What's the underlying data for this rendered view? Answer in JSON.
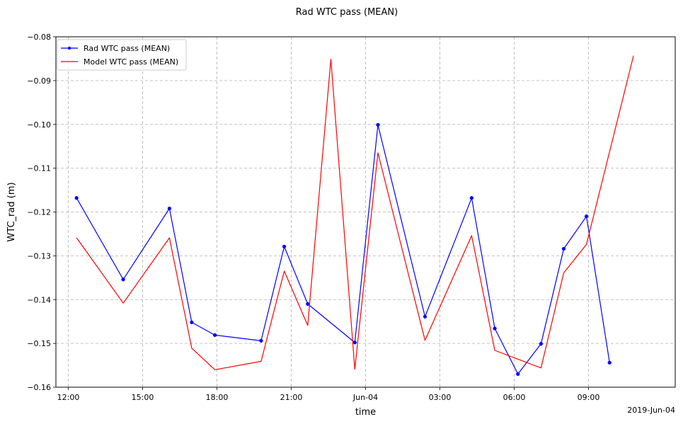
{
  "chart_data": {
    "type": "line",
    "title": "Rad WTC pass (MEAN)",
    "xlabel": "time",
    "ylabel": "WTC_rad (m)",
    "x_offset_label": "2019-Jun-04",
    "xlim": [
      "2019-06-03T11:30",
      "2019-06-04T12:30"
    ],
    "ylim": [
      -0.16,
      -0.08
    ],
    "grid": true,
    "legend_position": "top-left",
    "x_ticks": [
      {
        "t": "2019-06-03T12:00",
        "label": "12:00"
      },
      {
        "t": "2019-06-03T15:00",
        "label": "15:00"
      },
      {
        "t": "2019-06-03T18:00",
        "label": "18:00"
      },
      {
        "t": "2019-06-03T21:00",
        "label": "21:00"
      },
      {
        "t": "2019-06-04T00:00",
        "label": "Jun-04"
      },
      {
        "t": "2019-06-04T03:00",
        "label": "03:00"
      },
      {
        "t": "2019-06-04T06:00",
        "label": "06:00"
      },
      {
        "t": "2019-06-04T09:00",
        "label": "09:00"
      }
    ],
    "y_ticks": [
      -0.16,
      -0.15,
      -0.14,
      -0.13,
      -0.12,
      -0.11,
      -0.1,
      -0.09,
      -0.08
    ],
    "y_tick_labels": [
      "−0.16",
      "−0.15",
      "−0.14",
      "−0.13",
      "−0.12",
      "−0.11",
      "−0.10",
      "−0.09",
      "−0.08"
    ],
    "series": [
      {
        "name": "Rad WTC pass (MEAN)",
        "color": "#0000ff",
        "markers": true,
        "points": [
          {
            "t": "2019-06-03T12:20",
            "y": -0.1168
          },
          {
            "t": "2019-06-03T14:13",
            "y": -0.1354
          },
          {
            "t": "2019-06-03T16:05",
            "y": -0.1192
          },
          {
            "t": "2019-06-03T16:59",
            "y": -0.1452
          },
          {
            "t": "2019-06-03T17:55",
            "y": -0.1481
          },
          {
            "t": "2019-06-03T19:47",
            "y": -0.1494
          },
          {
            "t": "2019-06-03T20:43",
            "y": -0.1279
          },
          {
            "t": "2019-06-03T21:40",
            "y": -0.141
          },
          {
            "t": "2019-06-03T23:34",
            "y": -0.1498
          },
          {
            "t": "2019-06-04T00:30",
            "y": -0.1001
          },
          {
            "t": "2019-06-04T02:24",
            "y": -0.1439
          },
          {
            "t": "2019-06-04T04:17",
            "y": -0.1168
          },
          {
            "t": "2019-06-04T05:13",
            "y": -0.1466
          },
          {
            "t": "2019-06-04T06:09",
            "y": -0.157
          },
          {
            "t": "2019-06-04T07:05",
            "y": -0.1501
          },
          {
            "t": "2019-06-04T08:00",
            "y": -0.1284
          },
          {
            "t": "2019-06-04T08:55",
            "y": -0.121
          },
          {
            "t": "2019-06-04T09:51",
            "y": -0.1544
          }
        ]
      },
      {
        "name": "Model WTC pass (MEAN)",
        "color": "#ff0000",
        "markers": false,
        "points": [
          {
            "t": "2019-06-03T12:20",
            "y": -0.1259
          },
          {
            "t": "2019-06-03T14:13",
            "y": -0.1408
          },
          {
            "t": "2019-06-03T16:05",
            "y": -0.1259
          },
          {
            "t": "2019-06-03T16:59",
            "y": -0.1511
          },
          {
            "t": "2019-06-03T17:55",
            "y": -0.156
          },
          {
            "t": "2019-06-03T19:47",
            "y": -0.1541
          },
          {
            "t": "2019-06-03T20:43",
            "y": -0.1335
          },
          {
            "t": "2019-06-03T21:40",
            "y": -0.1459
          },
          {
            "t": "2019-06-03T22:36",
            "y": -0.0851
          },
          {
            "t": "2019-06-03T23:34",
            "y": -0.1559
          },
          {
            "t": "2019-06-04T00:30",
            "y": -0.1065
          },
          {
            "t": "2019-06-04T02:24",
            "y": -0.1493
          },
          {
            "t": "2019-06-04T04:17",
            "y": -0.1254
          },
          {
            "t": "2019-06-04T05:13",
            "y": -0.1516
          },
          {
            "t": "2019-06-04T07:05",
            "y": -0.1556
          },
          {
            "t": "2019-06-04T08:00",
            "y": -0.1339
          },
          {
            "t": "2019-06-04T08:55",
            "y": -0.1274
          },
          {
            "t": "2019-06-04T10:49",
            "y": -0.0843
          }
        ]
      }
    ]
  }
}
